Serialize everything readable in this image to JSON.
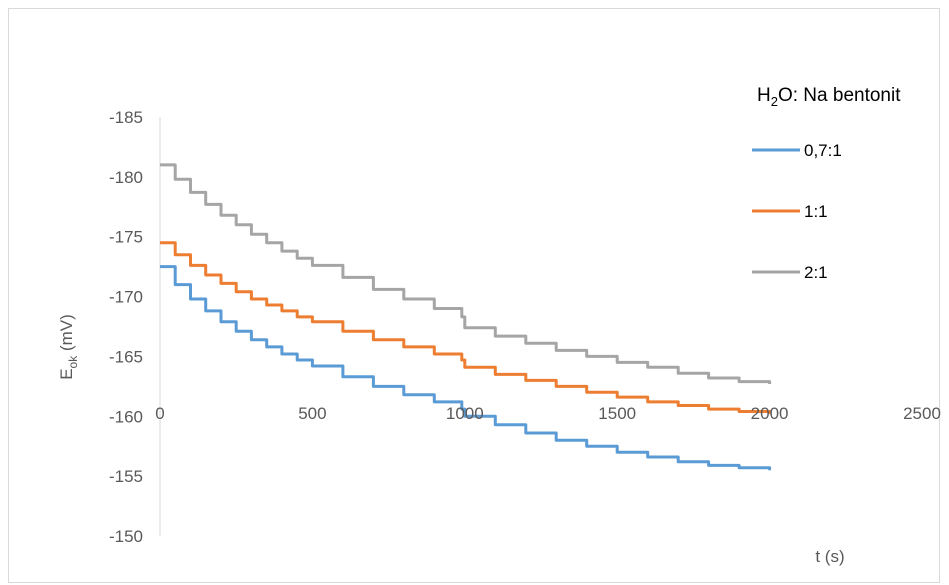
{
  "chart_data": {
    "type": "line",
    "title": "",
    "xlabel": "t (s)",
    "ylabel_main": "E",
    "ylabel_sub": "ok",
    "ylabel_unit": " (mV)",
    "xlim": [
      0,
      2500
    ],
    "ylim": [
      -150,
      -185
    ],
    "x_ticks": [
      0,
      500,
      1000,
      1500,
      2000,
      2500
    ],
    "x_tick_labels": [
      "0",
      "500",
      "1000",
      "1500",
      "2000",
      "2500"
    ],
    "y_ticks": [
      -150,
      -155,
      -160,
      -165,
      -170,
      -175,
      -180,
      -185
    ],
    "y_tick_labels": [
      "-150",
      "-155",
      "-160",
      "-165",
      "-170",
      "-175",
      "-180",
      "-185"
    ],
    "grid": false,
    "legend_title_parts": [
      "H",
      "2",
      "O: Na bentonit"
    ],
    "legend_position": "right",
    "series": [
      {
        "name": "0,7:1",
        "color": "#5b9bd5",
        "x": [
          0,
          50,
          100,
          150,
          200,
          250,
          300,
          350,
          400,
          450,
          500,
          600,
          700,
          800,
          900,
          990,
          1000,
          1100,
          1200,
          1300,
          1400,
          1500,
          1600,
          1700,
          1800,
          1900,
          2000
        ],
        "y": [
          -172.5,
          -171.0,
          -169.8,
          -168.8,
          -167.9,
          -167.1,
          -166.4,
          -165.8,
          -165.2,
          -164.7,
          -164.2,
          -163.3,
          -162.5,
          -161.8,
          -161.2,
          -160.6,
          -160.0,
          -159.3,
          -158.6,
          -158.0,
          -157.5,
          -157.0,
          -156.6,
          -156.2,
          -155.9,
          -155.7,
          -155.5
        ]
      },
      {
        "name": "1:1",
        "color": "#ed7d31",
        "x": [
          0,
          50,
          100,
          150,
          200,
          250,
          300,
          350,
          400,
          450,
          500,
          600,
          700,
          800,
          900,
          990,
          1000,
          1100,
          1200,
          1300,
          1400,
          1500,
          1600,
          1700,
          1800,
          1900,
          2000
        ],
        "y": [
          -174.5,
          -173.5,
          -172.6,
          -171.8,
          -171.1,
          -170.4,
          -169.8,
          -169.3,
          -168.8,
          -168.3,
          -167.9,
          -167.1,
          -166.4,
          -165.8,
          -165.2,
          -164.7,
          -164.1,
          -163.5,
          -163.0,
          -162.5,
          -162.0,
          -161.6,
          -161.2,
          -160.9,
          -160.6,
          -160.4,
          -160.2
        ]
      },
      {
        "name": "2:1",
        "color": "#a5a5a5",
        "x": [
          0,
          50,
          100,
          150,
          200,
          250,
          300,
          350,
          400,
          450,
          500,
          600,
          700,
          800,
          900,
          990,
          1000,
          1100,
          1200,
          1300,
          1400,
          1500,
          1600,
          1700,
          1800,
          1900,
          2000
        ],
        "y": [
          -181.0,
          -179.8,
          -178.7,
          -177.7,
          -176.8,
          -176.0,
          -175.2,
          -174.5,
          -173.8,
          -173.2,
          -172.6,
          -171.6,
          -170.6,
          -169.8,
          -169.0,
          -168.3,
          -167.4,
          -166.7,
          -166.1,
          -165.5,
          -165.0,
          -164.5,
          -164.1,
          -163.6,
          -163.2,
          -162.9,
          -162.7
        ]
      }
    ]
  }
}
